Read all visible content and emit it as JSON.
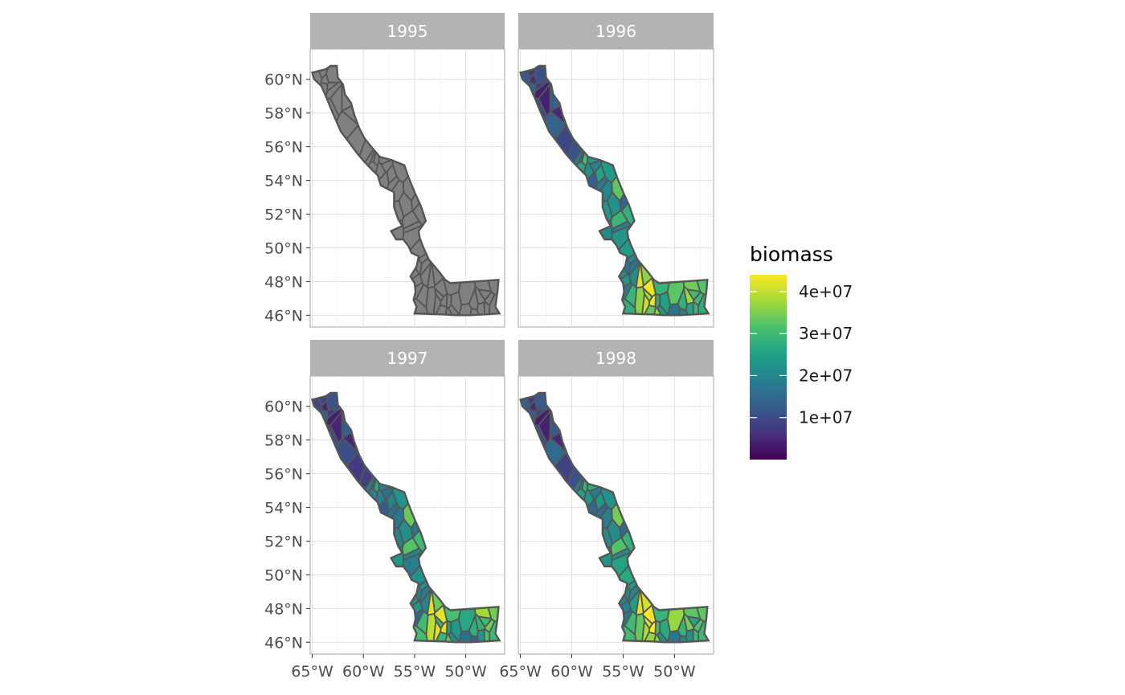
{
  "chart_data": {
    "type": "choropleth-map-facets",
    "facet_variable": "year",
    "panels": [
      {
        "label": "1995",
        "fill": "none (all polygons grey)",
        "grey_fill": "#808080"
      },
      {
        "label": "1996",
        "fill": "biomass"
      },
      {
        "label": "1997",
        "fill": "biomass"
      },
      {
        "label": "1998",
        "fill": "biomass"
      }
    ],
    "x_ticks": [
      "65°W",
      "60°W",
      "55°W",
      "50°W"
    ],
    "x_tick_values": [
      -65,
      -60,
      -55,
      -50
    ],
    "y_ticks": [
      "60°N",
      "58°N",
      "56°N",
      "54°N",
      "52°N",
      "50°N",
      "48°N",
      "46°N"
    ],
    "y_tick_values": [
      60,
      58,
      56,
      54,
      52,
      50,
      48,
      46
    ],
    "xlim": [
      -65.2,
      -46.2
    ],
    "ylim": [
      45.3,
      61.8
    ],
    "grid": true,
    "legend": {
      "title": "biomass",
      "position": "right",
      "labels": [
        "4e+07",
        "3e+07",
        "2e+07",
        "1e+07"
      ],
      "values": [
        40000000,
        30000000,
        20000000,
        10000000
      ],
      "range": [
        0,
        44000000
      ],
      "palette": "viridis",
      "colors": [
        "#440154",
        "#46327e",
        "#365c8d",
        "#277f8e",
        "#1fa187",
        "#4ac16d",
        "#a0da39",
        "#fde725"
      ]
    },
    "outline_color": "#555555",
    "strip_fill": "#b3b3b3"
  }
}
